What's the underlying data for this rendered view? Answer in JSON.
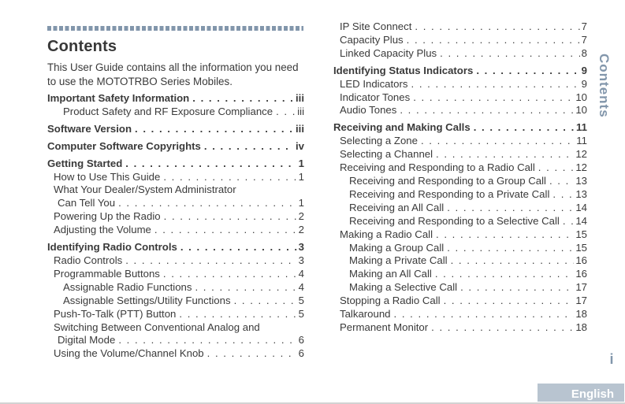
{
  "page": {
    "title": "Contents",
    "intro": "This User Guide contains all the information you need to use the MOTOTRBO Series Mobiles.",
    "sidebar_label": "Contents",
    "page_number": "i",
    "language_button": "English",
    "colors": {
      "accent": "#8296ab",
      "buttonBg": "#b8c4d0",
      "ink": "#3a3a3a"
    }
  },
  "toc_left": [
    {
      "level": "h",
      "label": "Important Safety Information",
      "page": "iii"
    },
    {
      "level": "s2",
      "label": "Product Safety and RF Exposure Compliance",
      "page": "iii"
    },
    {
      "level": "h",
      "label": "Software Version",
      "page": "iii"
    },
    {
      "level": "h",
      "label": "Computer Software Copyrights",
      "page": "iv"
    },
    {
      "level": "h",
      "label": "Getting Started",
      "page": "1"
    },
    {
      "level": "s1",
      "label": "How to Use This Guide",
      "page": "1"
    },
    {
      "level": "s1",
      "label": "What Your Dealer/System Administrator",
      "page": ""
    },
    {
      "level": "cont",
      "label": "Can Tell You",
      "page": "1"
    },
    {
      "level": "s1",
      "label": "Powering Up the Radio",
      "page": "2"
    },
    {
      "level": "s1",
      "label": "Adjusting the Volume",
      "page": "2"
    },
    {
      "level": "h",
      "label": "Identifying Radio Controls",
      "page": "3"
    },
    {
      "level": "s1",
      "label": "Radio Controls",
      "page": "3"
    },
    {
      "level": "s1",
      "label": "Programmable Buttons",
      "page": "4"
    },
    {
      "level": "s2",
      "label": "Assignable Radio Functions",
      "page": "4"
    },
    {
      "level": "s2",
      "label": "Assignable Settings/Utility Functions",
      "page": "5"
    },
    {
      "level": "s1",
      "label": "Push-To-Talk (PTT) Button",
      "page": "5"
    },
    {
      "level": "s1",
      "label": "Switching Between Conventional Analog and",
      "page": ""
    },
    {
      "level": "cont",
      "label": "Digital Mode",
      "page": "6"
    },
    {
      "level": "s1",
      "label": "Using the Volume/Channel Knob",
      "page": "6"
    }
  ],
  "toc_right": [
    {
      "level": "s1",
      "label": "IP Site Connect",
      "page": "7"
    },
    {
      "level": "s1",
      "label": "Capacity Plus",
      "page": "7"
    },
    {
      "level": "s1",
      "label": "Linked Capacity Plus",
      "page": "8"
    },
    {
      "level": "h",
      "label": "Identifying Status Indicators",
      "page": "9"
    },
    {
      "level": "s1",
      "label": "LED Indicators",
      "page": "9"
    },
    {
      "level": "s1",
      "label": "Indicator Tones",
      "page": "10"
    },
    {
      "level": "s1",
      "label": "Audio Tones",
      "page": "10"
    },
    {
      "level": "h",
      "label": "Receiving and Making Calls",
      "page": "11"
    },
    {
      "level": "s1",
      "label": "Selecting a Zone",
      "page": "11"
    },
    {
      "level": "s1",
      "label": "Selecting a Channel",
      "page": "12"
    },
    {
      "level": "s1",
      "label": "Receiving and Responding to a Radio Call",
      "page": "12"
    },
    {
      "level": "s2",
      "label": "Receiving and Responding to a Group Call",
      "page": "13"
    },
    {
      "level": "s2",
      "label": "Receiving and Responding to a Private Call",
      "page": "13"
    },
    {
      "level": "s2",
      "label": "Receiving an All Call",
      "page": "14"
    },
    {
      "level": "s2",
      "label": "Receiving and Responding to a Selective Call",
      "page": "14"
    },
    {
      "level": "s1",
      "label": "Making a Radio Call",
      "page": "15"
    },
    {
      "level": "s2",
      "label": "Making a Group Call",
      "page": "15"
    },
    {
      "level": "s2",
      "label": "Making a Private Call",
      "page": "16"
    },
    {
      "level": "s2",
      "label": "Making an All Call",
      "page": "16"
    },
    {
      "level": "s2",
      "label": "Making a Selective Call",
      "page": "17"
    },
    {
      "level": "s1",
      "label": "Stopping a Radio Call",
      "page": "17"
    },
    {
      "level": "s1",
      "label": "Talkaround",
      "page": "18"
    },
    {
      "level": "s1",
      "label": "Permanent Monitor",
      "page": "18"
    }
  ]
}
